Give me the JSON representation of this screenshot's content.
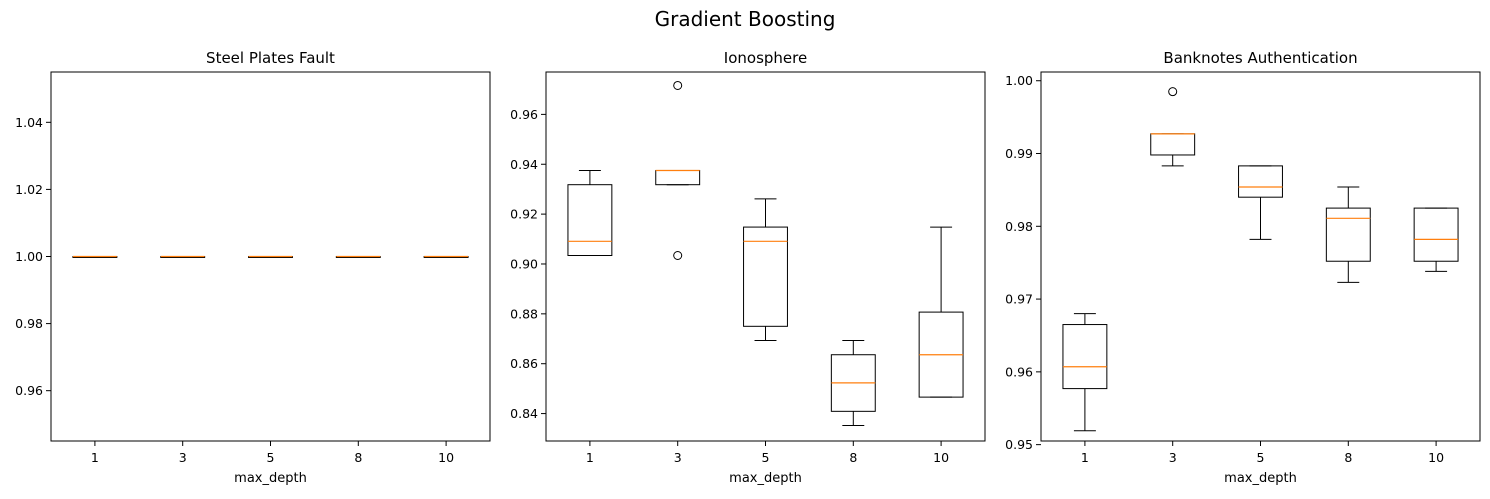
{
  "figure": {
    "suptitle": "Gradient Boosting"
  },
  "colors": {
    "box": "#000000",
    "median": "#ff7f0e",
    "background": "#ffffff"
  },
  "chart_data": [
    {
      "type": "box",
      "title": "Steel Plates Fault",
      "xlabel": "max_depth",
      "ylabel": "",
      "categories": [
        "1",
        "3",
        "5",
        "8",
        "10"
      ],
      "ylim": [
        0.945,
        1.055
      ],
      "yticks": [
        0.96,
        0.98,
        1.0,
        1.02,
        1.04
      ],
      "ytick_labels": [
        "0.96",
        "0.98",
        "1.00",
        "1.02",
        "1.04"
      ],
      "grid": false,
      "boxes": [
        {
          "whisker_low": 1.0,
          "q1": 1.0,
          "median": 1.0,
          "q3": 1.0,
          "whisker_high": 1.0,
          "outliers": []
        },
        {
          "whisker_low": 1.0,
          "q1": 1.0,
          "median": 1.0,
          "q3": 1.0,
          "whisker_high": 1.0,
          "outliers": []
        },
        {
          "whisker_low": 1.0,
          "q1": 1.0,
          "median": 1.0,
          "q3": 1.0,
          "whisker_high": 1.0,
          "outliers": []
        },
        {
          "whisker_low": 1.0,
          "q1": 1.0,
          "median": 1.0,
          "q3": 1.0,
          "whisker_high": 1.0,
          "outliers": []
        },
        {
          "whisker_low": 1.0,
          "q1": 1.0,
          "median": 1.0,
          "q3": 1.0,
          "whisker_high": 1.0,
          "outliers": []
        }
      ]
    },
    {
      "type": "box",
      "title": "Ionosphere",
      "xlabel": "max_depth",
      "ylabel": "",
      "categories": [
        "1",
        "3",
        "5",
        "8",
        "10"
      ],
      "ylim": [
        0.829,
        0.977
      ],
      "yticks": [
        0.84,
        0.86,
        0.88,
        0.9,
        0.92,
        0.94,
        0.96
      ],
      "ytick_labels": [
        "0.84",
        "0.86",
        "0.88",
        "0.90",
        "0.92",
        "0.94",
        "0.96"
      ],
      "grid": false,
      "boxes": [
        {
          "whisker_low": 0.9034,
          "q1": 0.9034,
          "median": 0.9091,
          "q3": 0.9318,
          "whisker_high": 0.9375,
          "outliers": []
        },
        {
          "whisker_low": 0.9318,
          "q1": 0.9318,
          "median": 0.9375,
          "q3": 0.9375,
          "whisker_high": 0.9375,
          "outliers": [
            0.9716,
            0.9034
          ]
        },
        {
          "whisker_low": 0.8693,
          "q1": 0.875,
          "median": 0.9091,
          "q3": 0.9148,
          "whisker_high": 0.9261,
          "outliers": []
        },
        {
          "whisker_low": 0.8352,
          "q1": 0.8409,
          "median": 0.8523,
          "q3": 0.8636,
          "whisker_high": 0.8693,
          "outliers": []
        },
        {
          "whisker_low": 0.8466,
          "q1": 0.8466,
          "median": 0.8636,
          "q3": 0.8807,
          "whisker_high": 0.9148,
          "outliers": []
        }
      ]
    },
    {
      "type": "box",
      "title": "Banknotes Authentication",
      "xlabel": "max_depth",
      "ylabel": "",
      "categories": [
        "1",
        "3",
        "5",
        "8",
        "10"
      ],
      "ylim": [
        0.9505,
        1.0012
      ],
      "yticks": [
        0.95,
        0.96,
        0.97,
        0.98,
        0.99,
        1.0
      ],
      "ytick_labels": [
        "0.95",
        "0.96",
        "0.97",
        "0.98",
        "0.99",
        "1.00"
      ],
      "grid": false,
      "boxes": [
        {
          "whisker_low": 0.9519,
          "q1": 0.9577,
          "median": 0.9607,
          "q3": 0.9665,
          "whisker_high": 0.968,
          "outliers": []
        },
        {
          "whisker_low": 0.9883,
          "q1": 0.9898,
          "median": 0.9927,
          "q3": 0.9927,
          "whisker_high": 0.9927,
          "outliers": [
            0.9985
          ]
        },
        {
          "whisker_low": 0.9782,
          "q1": 0.984,
          "median": 0.9854,
          "q3": 0.9883,
          "whisker_high": 0.9883,
          "outliers": []
        },
        {
          "whisker_low": 0.9723,
          "q1": 0.9752,
          "median": 0.9811,
          "q3": 0.9825,
          "whisker_high": 0.9854,
          "outliers": []
        },
        {
          "whisker_low": 0.9738,
          "q1": 0.9752,
          "median": 0.9782,
          "q3": 0.9825,
          "whisker_high": 0.9825,
          "outliers": []
        }
      ]
    }
  ]
}
